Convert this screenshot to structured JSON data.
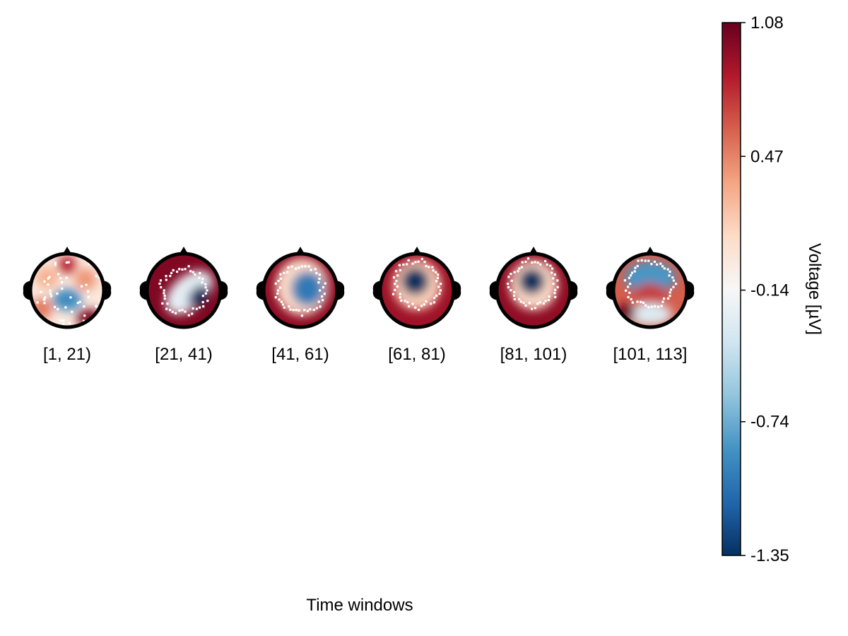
{
  "chart_data": {
    "type": "heatmap",
    "subtype": "topoplot-series",
    "title": "",
    "xlabel": "Time windows",
    "colorbar": {
      "label": "Voltage [µV]",
      "limits": [
        -1.35,
        1.08
      ],
      "ticks": [
        1.08,
        0.47,
        -0.14,
        -0.74,
        -1.35
      ],
      "tick_labels": [
        "1.08",
        "0.47",
        "-0.14",
        "-0.74",
        "-1.35"
      ],
      "colormap": "RdBu_r"
    },
    "topoplots": [
      {
        "label": "[1, 21)",
        "base_voltage": 0.0,
        "blobs": [
          {
            "x": 0.0,
            "y": 0.7,
            "rx": 0.25,
            "ry": 0.25,
            "v": 0.8
          },
          {
            "x": 0.0,
            "y": -0.25,
            "rx": 0.4,
            "ry": 0.3,
            "v": -0.9
          },
          {
            "x": -0.7,
            "y": -0.5,
            "rx": 0.3,
            "ry": 0.3,
            "v": 0.5
          },
          {
            "x": 0.6,
            "y": -0.75,
            "rx": 0.35,
            "ry": 0.25,
            "v": 1.0
          },
          {
            "x": 0.5,
            "y": 0.3,
            "rx": 0.3,
            "ry": 0.3,
            "v": 0.4
          },
          {
            "x": -0.55,
            "y": 0.35,
            "rx": 0.3,
            "ry": 0.3,
            "v": 0.3
          }
        ]
      },
      {
        "label": "[21, 41)",
        "base_voltage": 1.0,
        "blobs": [
          {
            "x": 0.15,
            "y": -0.05,
            "rx": 0.75,
            "ry": 0.45,
            "angle": -40,
            "v": -0.25
          },
          {
            "x": 0.4,
            "y": -0.15,
            "rx": 0.35,
            "ry": 0.22,
            "angle": -50,
            "v": -1.6
          }
        ]
      },
      {
        "label": "[41, 61)",
        "base_voltage": 0.95,
        "blobs": [
          {
            "x": 0.05,
            "y": 0.1,
            "rx": 0.72,
            "ry": 0.78,
            "v": 0.1
          },
          {
            "x": 0.2,
            "y": 0.05,
            "rx": 0.45,
            "ry": 0.48,
            "v": -1.0
          }
        ]
      },
      {
        "label": "[61, 81)",
        "base_voltage": 0.9,
        "blobs": [
          {
            "x": 0.0,
            "y": 0.15,
            "rx": 0.65,
            "ry": 0.68,
            "v": 0.15
          },
          {
            "x": -0.05,
            "y": 0.25,
            "rx": 0.38,
            "ry": 0.38,
            "v": -1.6
          }
        ]
      },
      {
        "label": "[81, 101)",
        "base_voltage": 0.95,
        "blobs": [
          {
            "x": 0.0,
            "y": 0.15,
            "rx": 0.65,
            "ry": 0.68,
            "v": 0.1
          },
          {
            "x": -0.05,
            "y": 0.25,
            "rx": 0.36,
            "ry": 0.36,
            "v": -1.6
          }
        ]
      },
      {
        "label": "[101, 113]",
        "base_voltage": 0.6,
        "blobs": [
          {
            "x": 0.0,
            "y": 0.35,
            "rx": 0.7,
            "ry": 0.45,
            "v": -0.85
          },
          {
            "x": 0.0,
            "y": -0.1,
            "rx": 0.45,
            "ry": 0.3,
            "v": 0.7
          },
          {
            "x": 0.0,
            "y": -0.65,
            "rx": 0.6,
            "ry": 0.3,
            "v": -0.3
          },
          {
            "x": -0.65,
            "y": -0.6,
            "rx": 0.25,
            "ry": 0.25,
            "v": 1.2
          }
        ]
      }
    ]
  }
}
